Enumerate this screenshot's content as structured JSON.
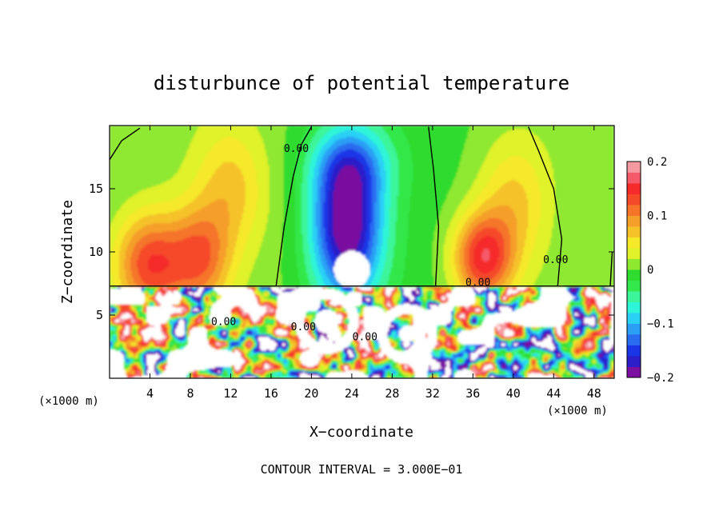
{
  "chart_data": {
    "type": "heatmap",
    "title": "disturbunce of potential temperature",
    "xlabel": "X−coordinate",
    "ylabel": "Z−coordinate",
    "x_unit_label": "(×1000 m)",
    "y_unit_label": "(×1000 m)",
    "xlim": [
      0,
      50
    ],
    "ylim": [
      0,
      20
    ],
    "x_ticks": [
      4,
      8,
      12,
      16,
      20,
      24,
      28,
      32,
      36,
      40,
      44,
      48
    ],
    "y_ticks": [
      5,
      10,
      15
    ],
    "colorbar": {
      "range": [
        -0.2,
        0.2
      ],
      "tick_values": [
        0.2,
        0.1,
        0,
        -0.1,
        -0.2
      ],
      "tick_labels": [
        "0.2",
        "0.1",
        "0",
        "−0.1",
        "−0.2"
      ],
      "colors": [
        "#7a0fa0",
        "#2c1ec8",
        "#1a35e6",
        "#2a6cf0",
        "#2b9ff5",
        "#2bd0f5",
        "#2ff5d8",
        "#3cf59a",
        "#33e84a",
        "#2fdb2f",
        "#8fe830",
        "#dff22a",
        "#f5e92a",
        "#f5c22a",
        "#f59f2a",
        "#f5742a",
        "#f54a2a",
        "#f52a2a",
        "#f55a6a",
        "#f59aa0"
      ]
    },
    "contour_labels": [
      {
        "text": "0.00",
        "x": 18.5,
        "z": 17.9
      },
      {
        "text": "0.00",
        "x": 36.5,
        "z": 7.3
      },
      {
        "text": "0.00",
        "x": 44.2,
        "z": 9.1
      },
      {
        "text": "0.00",
        "x": 11.3,
        "z": 4.2
      },
      {
        "text": "0.00",
        "x": 19.2,
        "z": 3.8
      },
      {
        "text": "0.00",
        "x": 25.3,
        "z": 3.0
      }
    ],
    "field_blobs_upper": [
      {
        "x": 4,
        "z": 9,
        "v": 0.13,
        "sx": 3.5,
        "sz": 4.0
      },
      {
        "x": 9,
        "z": 9.5,
        "v": 0.1,
        "sx": 3.0,
        "sz": 4.0
      },
      {
        "x": 12,
        "z": 15,
        "v": 0.06,
        "sx": 3.5,
        "sz": 5.0
      },
      {
        "x": 23.5,
        "z": 12,
        "v": -0.2,
        "sx": 3.5,
        "sz": 6.0
      },
      {
        "x": 24,
        "z": 17,
        "v": -0.07,
        "sx": 4.0,
        "sz": 3.0
      },
      {
        "x": 37,
        "z": 9.5,
        "v": 0.15,
        "sx": 3.0,
        "sz": 3.5
      },
      {
        "x": 40,
        "z": 14,
        "v": 0.06,
        "sx": 3.5,
        "sz": 5.0
      },
      {
        "x": 46.5,
        "z": 12,
        "v": -0.01,
        "sx": 2.5,
        "sz": 6.0
      }
    ],
    "footer": "CONTOUR INTERVAL = 3.000E−01"
  }
}
